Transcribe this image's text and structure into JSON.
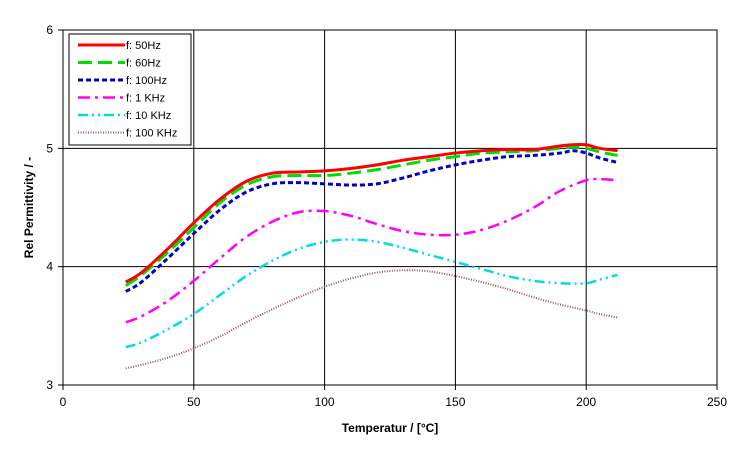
{
  "chart_data": {
    "type": "line",
    "xlabel": "Temperatur / [°C]",
    "ylabel": "Rel Permittivity / -",
    "xlim": [
      0,
      250
    ],
    "ylim": [
      3,
      6
    ],
    "xticks": [
      0,
      50,
      100,
      150,
      200,
      250
    ],
    "yticks": [
      3,
      4,
      5,
      6
    ],
    "grid": true,
    "legend_position": "top-left",
    "series": [
      {
        "name": "f: 50Hz",
        "color": "#ff0000",
        "dash": "solid",
        "x": [
          24,
          30,
          40,
          50,
          60,
          70,
          80,
          90,
          100,
          110,
          120,
          130,
          140,
          150,
          160,
          170,
          180,
          190,
          195,
          200,
          205,
          212
        ],
        "y": [
          3.87,
          3.95,
          4.15,
          4.37,
          4.57,
          4.72,
          4.79,
          4.8,
          4.81,
          4.83,
          4.86,
          4.9,
          4.93,
          4.96,
          4.98,
          4.99,
          4.99,
          5.02,
          5.03,
          5.03,
          5.0,
          4.98
        ]
      },
      {
        "name": "f: 60Hz",
        "color": "#00dd00",
        "dash": "long-dash",
        "x": [
          24,
          30,
          40,
          50,
          60,
          70,
          80,
          90,
          100,
          110,
          120,
          130,
          140,
          150,
          160,
          170,
          180,
          190,
          195,
          200,
          205,
          212
        ],
        "y": [
          3.84,
          3.93,
          4.12,
          4.33,
          4.54,
          4.69,
          4.76,
          4.77,
          4.77,
          4.79,
          4.82,
          4.86,
          4.9,
          4.93,
          4.96,
          4.97,
          4.98,
          5.0,
          5.01,
          5.0,
          4.97,
          4.94
        ]
      },
      {
        "name": "f: 100Hz",
        "color": "#0000cc",
        "dash": "short-dash",
        "x": [
          24,
          30,
          40,
          50,
          60,
          70,
          80,
          90,
          100,
          110,
          120,
          130,
          140,
          150,
          160,
          170,
          180,
          190,
          195,
          200,
          205,
          212
        ],
        "y": [
          3.79,
          3.87,
          4.07,
          4.28,
          4.48,
          4.63,
          4.7,
          4.71,
          4.7,
          4.69,
          4.7,
          4.75,
          4.81,
          4.86,
          4.9,
          4.93,
          4.94,
          4.96,
          4.98,
          4.96,
          4.92,
          4.88
        ]
      },
      {
        "name": "f: 1 KHz",
        "color": "#ff00ff",
        "dash": "dash-dot",
        "x": [
          24,
          30,
          40,
          50,
          60,
          70,
          80,
          90,
          100,
          110,
          120,
          130,
          140,
          150,
          160,
          170,
          180,
          190,
          200,
          205,
          212
        ],
        "y": [
          3.53,
          3.58,
          3.71,
          3.88,
          4.07,
          4.25,
          4.38,
          4.46,
          4.47,
          4.43,
          4.36,
          4.3,
          4.27,
          4.27,
          4.31,
          4.39,
          4.5,
          4.64,
          4.73,
          4.74,
          4.73
        ]
      },
      {
        "name": "f: 10 KHz",
        "color": "#00dddd",
        "dash": "dash-dot-dot",
        "x": [
          24,
          30,
          40,
          50,
          60,
          70,
          80,
          90,
          100,
          110,
          120,
          130,
          140,
          150,
          160,
          170,
          180,
          190,
          200,
          205,
          212
        ],
        "y": [
          3.32,
          3.36,
          3.47,
          3.6,
          3.76,
          3.92,
          4.05,
          4.15,
          4.21,
          4.23,
          4.21,
          4.16,
          4.1,
          4.04,
          3.98,
          3.92,
          3.88,
          3.86,
          3.86,
          3.89,
          3.93
        ]
      },
      {
        "name": "f: 100 KHz",
        "color": "#a05050",
        "dash": "dotted",
        "x": [
          24,
          30,
          40,
          50,
          60,
          70,
          80,
          90,
          100,
          110,
          120,
          130,
          140,
          150,
          160,
          170,
          180,
          190,
          200,
          205,
          212
        ],
        "y": [
          3.14,
          3.17,
          3.23,
          3.31,
          3.41,
          3.53,
          3.64,
          3.74,
          3.83,
          3.9,
          3.95,
          3.97,
          3.96,
          3.92,
          3.87,
          3.81,
          3.74,
          3.68,
          3.63,
          3.6,
          3.57
        ]
      }
    ]
  }
}
